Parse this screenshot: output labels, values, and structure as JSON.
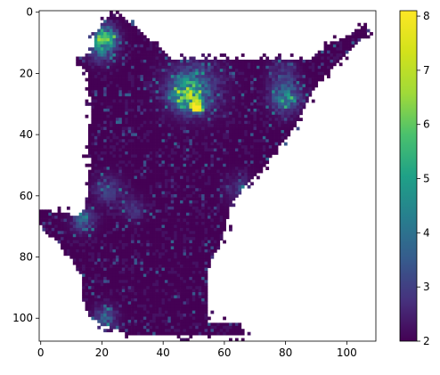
{
  "chart_data": {
    "type": "heatmap",
    "title": "",
    "xlabel": "",
    "ylabel": "",
    "xlim": [
      -0.5,
      109.5
    ],
    "ylim": [
      107.5,
      -0.5
    ],
    "x_ticks": [
      0,
      20,
      40,
      60,
      80,
      100
    ],
    "y_ticks": [
      0,
      20,
      40,
      60,
      80,
      100
    ],
    "grid": false,
    "colormap": "viridis",
    "missing_value_color": "#ffffff",
    "colorbar": {
      "placement": "right",
      "vmin": 2.0,
      "vmax": 8.1,
      "ticks": [
        2,
        3,
        4,
        5,
        6,
        7,
        8
      ]
    },
    "data_summary": {
      "grid_shape": [
        108,
        110
      ],
      "background_value": 2.0,
      "max_value": 8.1,
      "peak_location": [
        51,
        31
      ],
      "secondary_hotspots": [
        {
          "x": 21,
          "y": 8,
          "value": 5.5
        },
        {
          "x": 47,
          "y": 26,
          "value": 5.0
        },
        {
          "x": 80,
          "y": 28,
          "value": 4.3
        },
        {
          "x": 14,
          "y": 68,
          "value": 3.8
        },
        {
          "x": 21,
          "y": 100,
          "value": 3.6
        }
      ]
    }
  }
}
